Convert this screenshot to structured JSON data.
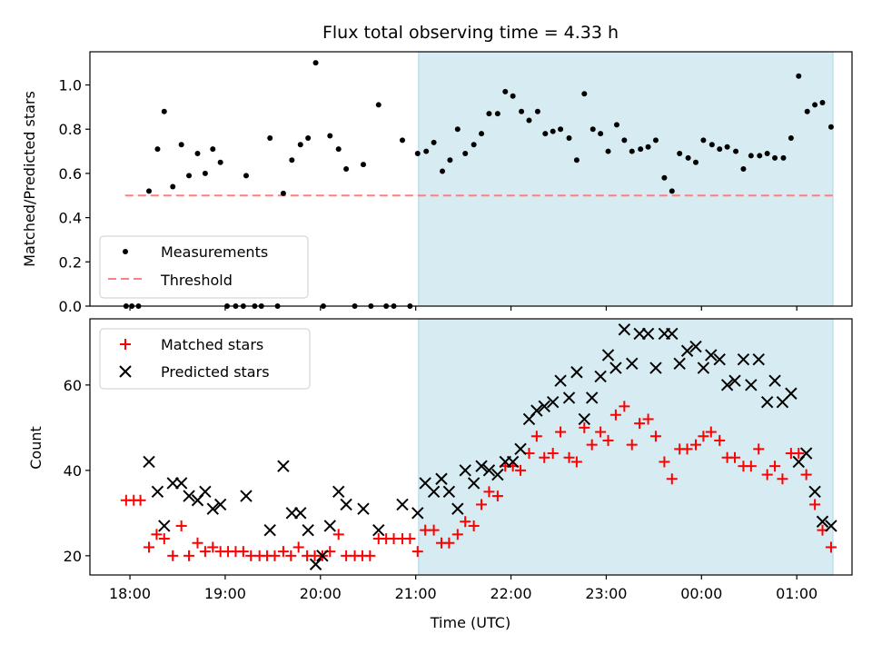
{
  "chart_data": [
    {
      "type": "scatter",
      "title": "Flux total observing time = 4.33 h",
      "xlabel": "",
      "ylabel": "Matched/Predicted stars",
      "xlim": [
        -0.42,
        7.58
      ],
      "ylim": [
        0.0,
        1.15
      ],
      "yticks": [
        "0.0",
        "0.2",
        "0.4",
        "0.6",
        "0.8",
        "1.0"
      ],
      "yticks_values": [
        0,
        0.2,
        0.4,
        0.6,
        0.8,
        1.0
      ],
      "shaded_region": [
        3.03,
        7.38
      ],
      "threshold": {
        "name": "Threshold",
        "value": 0.5,
        "x": [
          -0.05,
          7.38
        ],
        "color": "#ff7f7f"
      },
      "legend": {
        "placement": "lower-left",
        "entries": [
          "Measurements",
          "Threshold"
        ]
      },
      "series": [
        {
          "name": "Measurements",
          "color": "#000000",
          "points": [
            [
              -0.04,
              0.0
            ],
            [
              0.02,
              0.0
            ],
            [
              0.09,
              0.0
            ],
            [
              0.2,
              0.52
            ],
            [
              0.29,
              0.71
            ],
            [
              0.36,
              0.88
            ],
            [
              0.45,
              0.54
            ],
            [
              0.54,
              0.73
            ],
            [
              0.62,
              0.59
            ],
            [
              0.71,
              0.69
            ],
            [
              0.79,
              0.6
            ],
            [
              0.87,
              0.71
            ],
            [
              0.95,
              0.65
            ],
            [
              1.02,
              0.0
            ],
            [
              1.11,
              0.0
            ],
            [
              1.19,
              0.0
            ],
            [
              1.22,
              0.59
            ],
            [
              1.31,
              0.0
            ],
            [
              1.38,
              0.0
            ],
            [
              1.47,
              0.76
            ],
            [
              1.55,
              0.0
            ],
            [
              1.61,
              0.51
            ],
            [
              1.7,
              0.66
            ],
            [
              1.79,
              0.73
            ],
            [
              1.87,
              0.76
            ],
            [
              1.95,
              1.1
            ],
            [
              2.03,
              0.0
            ],
            [
              2.1,
              0.77
            ],
            [
              2.19,
              0.71
            ],
            [
              2.27,
              0.62
            ],
            [
              2.36,
              0.0
            ],
            [
              2.45,
              0.64
            ],
            [
              2.53,
              0.0
            ],
            [
              2.61,
              0.91
            ],
            [
              2.69,
              0.0
            ],
            [
              2.77,
              0.0
            ],
            [
              2.86,
              0.75
            ],
            [
              2.94,
              0.0
            ],
            [
              3.02,
              0.69
            ],
            [
              3.11,
              0.7
            ],
            [
              3.19,
              0.74
            ],
            [
              3.28,
              0.61
            ],
            [
              3.36,
              0.66
            ],
            [
              3.44,
              0.8
            ],
            [
              3.52,
              0.69
            ],
            [
              3.61,
              0.73
            ],
            [
              3.69,
              0.78
            ],
            [
              3.77,
              0.87
            ],
            [
              3.86,
              0.87
            ],
            [
              3.94,
              0.97
            ],
            [
              4.02,
              0.95
            ],
            [
              4.11,
              0.88
            ],
            [
              4.19,
              0.84
            ],
            [
              4.28,
              0.88
            ],
            [
              4.36,
              0.78
            ],
            [
              4.44,
              0.79
            ],
            [
              4.52,
              0.8
            ],
            [
              4.61,
              0.76
            ],
            [
              4.69,
              0.66
            ],
            [
              4.77,
              0.96
            ],
            [
              4.86,
              0.8
            ],
            [
              4.94,
              0.78
            ],
            [
              5.02,
              0.7
            ],
            [
              5.11,
              0.82
            ],
            [
              5.19,
              0.75
            ],
            [
              5.27,
              0.7
            ],
            [
              5.36,
              0.71
            ],
            [
              5.44,
              0.72
            ],
            [
              5.52,
              0.75
            ],
            [
              5.61,
              0.58
            ],
            [
              5.69,
              0.52
            ],
            [
              5.77,
              0.69
            ],
            [
              5.86,
              0.67
            ],
            [
              5.94,
              0.65
            ],
            [
              6.02,
              0.75
            ],
            [
              6.11,
              0.73
            ],
            [
              6.19,
              0.71
            ],
            [
              6.27,
              0.72
            ],
            [
              6.36,
              0.7
            ],
            [
              6.44,
              0.62
            ],
            [
              6.52,
              0.68
            ],
            [
              6.61,
              0.68
            ],
            [
              6.69,
              0.69
            ],
            [
              6.77,
              0.67
            ],
            [
              6.86,
              0.67
            ],
            [
              6.94,
              0.76
            ],
            [
              7.02,
              1.04
            ],
            [
              7.11,
              0.88
            ],
            [
              7.19,
              0.91
            ],
            [
              7.27,
              0.92
            ],
            [
              7.36,
              0.81
            ]
          ]
        }
      ]
    },
    {
      "type": "scatter",
      "title": "",
      "xlabel": "Time (UTC)",
      "ylabel": "Count",
      "xlim": [
        -0.42,
        7.58
      ],
      "ylim": [
        15.5,
        75.5
      ],
      "yticks": [
        "20",
        "40",
        "60"
      ],
      "yticks_values": [
        20,
        40,
        60
      ],
      "xticks": [
        "18:00",
        "19:00",
        "20:00",
        "21:00",
        "22:00",
        "23:00",
        "00:00",
        "01:00"
      ],
      "xticks_values": [
        0,
        1,
        2,
        3,
        4,
        5,
        6,
        7
      ],
      "shaded_region": [
        3.03,
        7.38
      ],
      "legend": {
        "placement": "upper-left",
        "entries": [
          "Matched stars",
          "Predicted stars"
        ]
      },
      "series": [
        {
          "name": "Matched stars",
          "color": "#ff0000",
          "points": [
            [
              -0.04,
              33
            ],
            [
              0.04,
              33
            ],
            [
              0.11,
              33
            ],
            [
              0.2,
              22
            ],
            [
              0.28,
              25
            ],
            [
              0.36,
              24
            ],
            [
              0.45,
              20
            ],
            [
              0.54,
              27
            ],
            [
              0.62,
              20
            ],
            [
              0.71,
              23
            ],
            [
              0.79,
              21
            ],
            [
              0.87,
              22
            ],
            [
              0.95,
              21
            ],
            [
              1.03,
              21
            ],
            [
              1.11,
              21
            ],
            [
              1.19,
              21
            ],
            [
              1.27,
              20
            ],
            [
              1.36,
              20
            ],
            [
              1.44,
              20
            ],
            [
              1.52,
              20
            ],
            [
              1.61,
              21
            ],
            [
              1.69,
              20
            ],
            [
              1.77,
              22
            ],
            [
              1.86,
              20
            ],
            [
              1.94,
              20
            ],
            [
              2.02,
              20
            ],
            [
              2.1,
              21
            ],
            [
              2.19,
              25
            ],
            [
              2.27,
              20
            ],
            [
              2.36,
              20
            ],
            [
              2.44,
              20
            ],
            [
              2.52,
              20
            ],
            [
              2.61,
              24
            ],
            [
              2.69,
              24
            ],
            [
              2.77,
              24
            ],
            [
              2.86,
              24
            ],
            [
              2.94,
              24
            ],
            [
              3.02,
              21
            ],
            [
              3.1,
              26
            ],
            [
              3.19,
              26
            ],
            [
              3.27,
              23
            ],
            [
              3.35,
              23
            ],
            [
              3.44,
              25
            ],
            [
              3.52,
              28
            ],
            [
              3.61,
              27
            ],
            [
              3.69,
              32
            ],
            [
              3.77,
              35
            ],
            [
              3.86,
              34
            ],
            [
              3.94,
              41
            ],
            [
              4.02,
              41
            ],
            [
              4.1,
              40
            ],
            [
              4.19,
              44
            ],
            [
              4.27,
              48
            ],
            [
              4.35,
              43
            ],
            [
              4.44,
              44
            ],
            [
              4.52,
              49
            ],
            [
              4.61,
              43
            ],
            [
              4.69,
              42
            ],
            [
              4.77,
              50
            ],
            [
              4.85,
              46
            ],
            [
              4.94,
              49
            ],
            [
              5.02,
              47
            ],
            [
              5.1,
              53
            ],
            [
              5.19,
              55
            ],
            [
              5.27,
              46
            ],
            [
              5.35,
              51
            ],
            [
              5.44,
              52
            ],
            [
              5.52,
              48
            ],
            [
              5.61,
              42
            ],
            [
              5.69,
              38
            ],
            [
              5.77,
              45
            ],
            [
              5.85,
              45
            ],
            [
              5.94,
              46
            ],
            [
              6.02,
              48
            ],
            [
              6.1,
              49
            ],
            [
              6.19,
              47
            ],
            [
              6.27,
              43
            ],
            [
              6.35,
              43
            ],
            [
              6.44,
              41
            ],
            [
              6.52,
              41
            ],
            [
              6.6,
              45
            ],
            [
              6.69,
              39
            ],
            [
              6.77,
              41
            ],
            [
              6.85,
              38
            ],
            [
              6.94,
              44
            ],
            [
              7.02,
              44
            ],
            [
              7.1,
              39
            ],
            [
              7.19,
              32
            ],
            [
              7.27,
              26
            ],
            [
              7.36,
              22
            ]
          ]
        },
        {
          "name": "Predicted stars",
          "color": "#000000",
          "points": [
            [
              0.2,
              42
            ],
            [
              0.29,
              35
            ],
            [
              0.36,
              27
            ],
            [
              0.45,
              37
            ],
            [
              0.54,
              37
            ],
            [
              0.62,
              34
            ],
            [
              0.71,
              33
            ],
            [
              0.79,
              35
            ],
            [
              0.87,
              31
            ],
            [
              0.95,
              32
            ],
            [
              1.22,
              34
            ],
            [
              1.47,
              26
            ],
            [
              1.61,
              41
            ],
            [
              1.7,
              30
            ],
            [
              1.79,
              30
            ],
            [
              1.87,
              26
            ],
            [
              1.95,
              18
            ],
            [
              2.02,
              20
            ],
            [
              2.1,
              27
            ],
            [
              2.19,
              35
            ],
            [
              2.27,
              32
            ],
            [
              2.45,
              31
            ],
            [
              2.61,
              26
            ],
            [
              2.86,
              32
            ],
            [
              3.02,
              30
            ],
            [
              3.1,
              37
            ],
            [
              3.19,
              35
            ],
            [
              3.27,
              38
            ],
            [
              3.35,
              35
            ],
            [
              3.44,
              31
            ],
            [
              3.52,
              40
            ],
            [
              3.61,
              37
            ],
            [
              3.69,
              41
            ],
            [
              3.77,
              40
            ],
            [
              3.86,
              39
            ],
            [
              3.94,
              42
            ],
            [
              4.02,
              42
            ],
            [
              4.1,
              45
            ],
            [
              4.19,
              52
            ],
            [
              4.27,
              54
            ],
            [
              4.35,
              55
            ],
            [
              4.44,
              56
            ],
            [
              4.52,
              61
            ],
            [
              4.61,
              57
            ],
            [
              4.69,
              63
            ],
            [
              4.77,
              52
            ],
            [
              4.85,
              57
            ],
            [
              4.94,
              62
            ],
            [
              5.02,
              67
            ],
            [
              5.1,
              64
            ],
            [
              5.19,
              73
            ],
            [
              5.27,
              65
            ],
            [
              5.35,
              72
            ],
            [
              5.44,
              72
            ],
            [
              5.52,
              64
            ],
            [
              5.61,
              72
            ],
            [
              5.69,
              72
            ],
            [
              5.77,
              65
            ],
            [
              5.85,
              68
            ],
            [
              5.94,
              69
            ],
            [
              6.02,
              64
            ],
            [
              6.1,
              67
            ],
            [
              6.19,
              66
            ],
            [
              6.27,
              60
            ],
            [
              6.35,
              61
            ],
            [
              6.44,
              66
            ],
            [
              6.52,
              60
            ],
            [
              6.6,
              66
            ],
            [
              6.69,
              56
            ],
            [
              6.77,
              61
            ],
            [
              6.85,
              56
            ],
            [
              6.94,
              58
            ],
            [
              7.02,
              42
            ],
            [
              7.1,
              44
            ],
            [
              7.19,
              35
            ],
            [
              7.27,
              28
            ],
            [
              7.36,
              27
            ]
          ]
        }
      ]
    }
  ]
}
